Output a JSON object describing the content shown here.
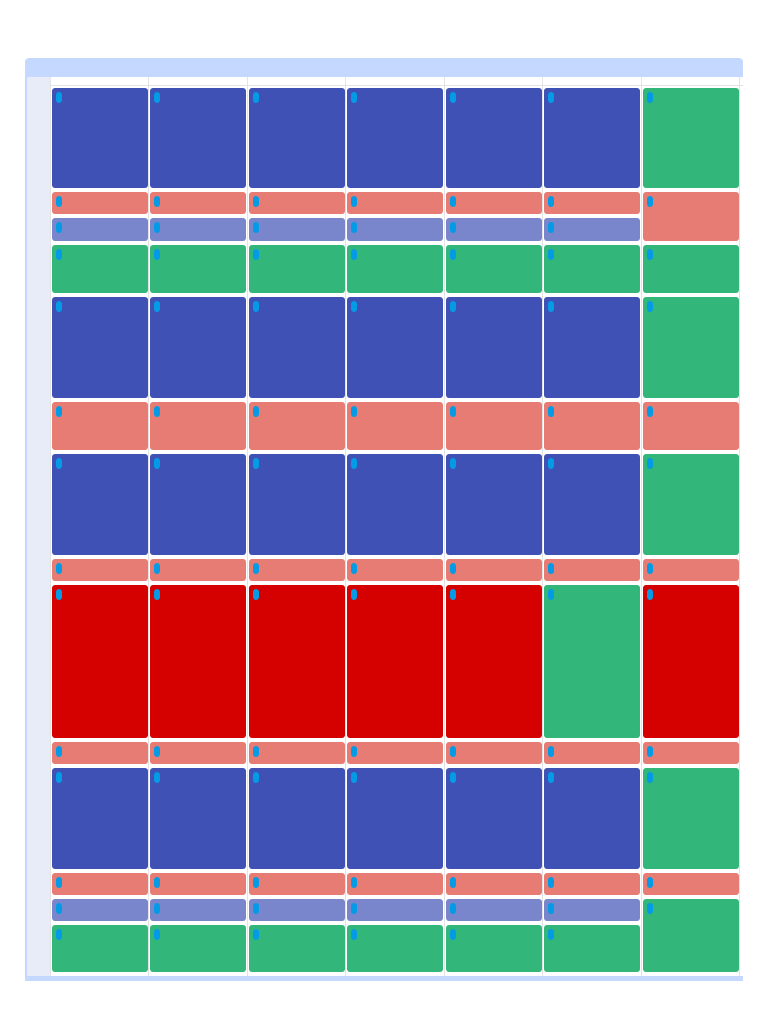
{
  "grid": {
    "rows": [
      [
        "#3f51b5",
        "#3f51b5",
        "#3f51b5",
        "#3f51b5",
        "#3f51b5",
        "#3f51b5",
        "#33b679"
      ],
      [
        "#e67c73",
        "#e67c73",
        "#e67c73",
        "#e67c73",
        "#e67c73",
        "#e67c73",
        "#e67c73"
      ],
      [
        "#7986cb",
        "#7986cb",
        "#7986cb",
        "#7986cb",
        "#7986cb",
        "#7986cb",
        null
      ],
      [
        "#33b679",
        "#33b679",
        "#33b679",
        "#33b679",
        "#33b679",
        "#33b679",
        "#33b679"
      ],
      [
        "#3f51b5",
        "#3f51b5",
        "#3f51b5",
        "#3f51b5",
        "#3f51b5",
        "#3f51b5",
        "#33b679"
      ],
      [
        "#e67c73",
        "#e67c73",
        "#e67c73",
        "#e67c73",
        "#e67c73",
        "#e67c73",
        "#e67c73"
      ],
      [
        "#3f51b5",
        "#3f51b5",
        "#3f51b5",
        "#3f51b5",
        "#3f51b5",
        "#3f51b5",
        "#33b679"
      ],
      [
        "#e67c73",
        "#e67c73",
        "#e67c73",
        "#e67c73",
        "#e67c73",
        "#e67c73",
        "#e67c73"
      ],
      [
        "#d50000",
        "#d50000",
        "#d50000",
        "#d50000",
        "#d50000",
        "#33b679",
        "#d50000"
      ],
      [
        "#e67c73",
        "#e67c73",
        "#e67c73",
        "#e67c73",
        "#e67c73",
        "#e67c73",
        "#e67c73"
      ],
      [
        "#3f51b5",
        "#3f51b5",
        "#3f51b5",
        "#3f51b5",
        "#3f51b5",
        "#3f51b5",
        "#33b679"
      ],
      [
        "#e67c73",
        "#e67c73",
        "#e67c73",
        "#e67c73",
        "#e67c73",
        "#e67c73",
        "#e67c73"
      ],
      [
        "#7986cb",
        "#7986cb",
        "#7986cb",
        "#7986cb",
        "#7986cb",
        "#7986cb",
        "#33b679"
      ],
      [
        "#33b679",
        "#33b679",
        "#33b679",
        "#33b679",
        "#33b679",
        "#33b679",
        null
      ]
    ]
  }
}
